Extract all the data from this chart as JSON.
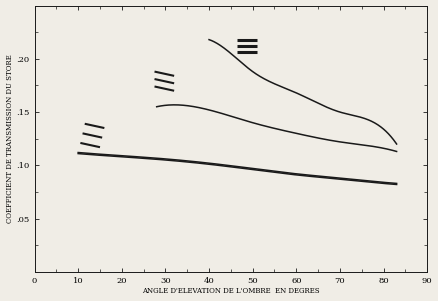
{
  "xlabel": "ANGLE D'ELEVATION DE L'OMBRE  EN DEGRES",
  "ylabel": "COEFFICIENT DE TRANSMISSION DU STORE",
  "xlim": [
    0,
    90
  ],
  "ylim": [
    0,
    0.25
  ],
  "background_color": "#f0ede6",
  "curve1": {
    "x": [
      10,
      20,
      30,
      40,
      50,
      60,
      70,
      80,
      83
    ],
    "y": [
      0.111,
      0.108,
      0.105,
      0.101,
      0.096,
      0.091,
      0.087,
      0.083,
      0.082
    ]
  },
  "curve2": {
    "x": [
      10,
      20,
      30,
      40,
      50,
      60,
      70,
      80,
      83
    ],
    "y": [
      0.112,
      0.109,
      0.106,
      0.102,
      0.097,
      0.092,
      0.088,
      0.084,
      0.083
    ]
  },
  "curve3": {
    "x": [
      28,
      35,
      40,
      50,
      60,
      70,
      80,
      83
    ],
    "y": [
      0.155,
      0.156,
      0.152,
      0.14,
      0.13,
      0.122,
      0.116,
      0.113
    ]
  },
  "curve4": {
    "x": [
      40,
      45,
      50,
      60,
      70,
      80,
      83
    ],
    "y": [
      0.218,
      0.205,
      0.188,
      0.168,
      0.15,
      0.134,
      0.12
    ]
  },
  "leg1": {
    "segments": [
      {
        "x": [
          10.5,
          15.0
        ],
        "y": [
          0.121,
          0.117
        ]
      },
      {
        "x": [
          11.0,
          15.5
        ],
        "y": [
          0.13,
          0.126
        ]
      },
      {
        "x": [
          11.5,
          16.0
        ],
        "y": [
          0.139,
          0.135
        ]
      }
    ]
  },
  "leg2": {
    "segments": [
      {
        "x": [
          27.5,
          32.0
        ],
        "y": [
          0.174,
          0.17
        ]
      },
      {
        "x": [
          27.5,
          32.0
        ],
        "y": [
          0.181,
          0.177
        ]
      },
      {
        "x": [
          27.5,
          32.0
        ],
        "y": [
          0.188,
          0.184
        ]
      }
    ]
  },
  "leg3": {
    "segments": [
      {
        "x": [
          46.5,
          51.0
        ],
        "y": [
          0.218,
          0.218
        ]
      },
      {
        "x": [
          46.5,
          51.0
        ],
        "y": [
          0.212,
          0.212
        ]
      },
      {
        "x": [
          46.5,
          51.0
        ],
        "y": [
          0.206,
          0.206
        ]
      }
    ]
  },
  "color": "#1a1a1a",
  "lw": 1.1
}
